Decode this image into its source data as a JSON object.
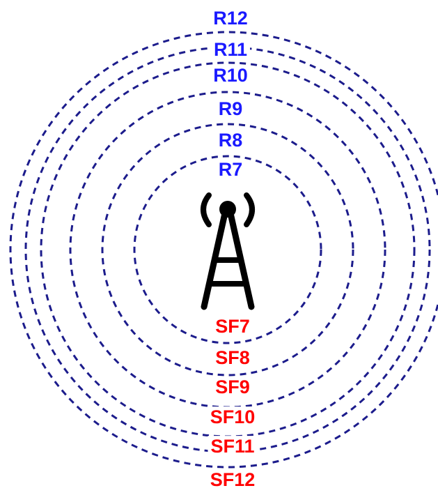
{
  "ring_labels": [
    "R7",
    "R8",
    "R9",
    "R10",
    "R11",
    "R12"
  ],
  "sf_labels": [
    "SF7",
    "SF8",
    "SF9",
    "SF10",
    "SF11",
    "SF12"
  ]
}
